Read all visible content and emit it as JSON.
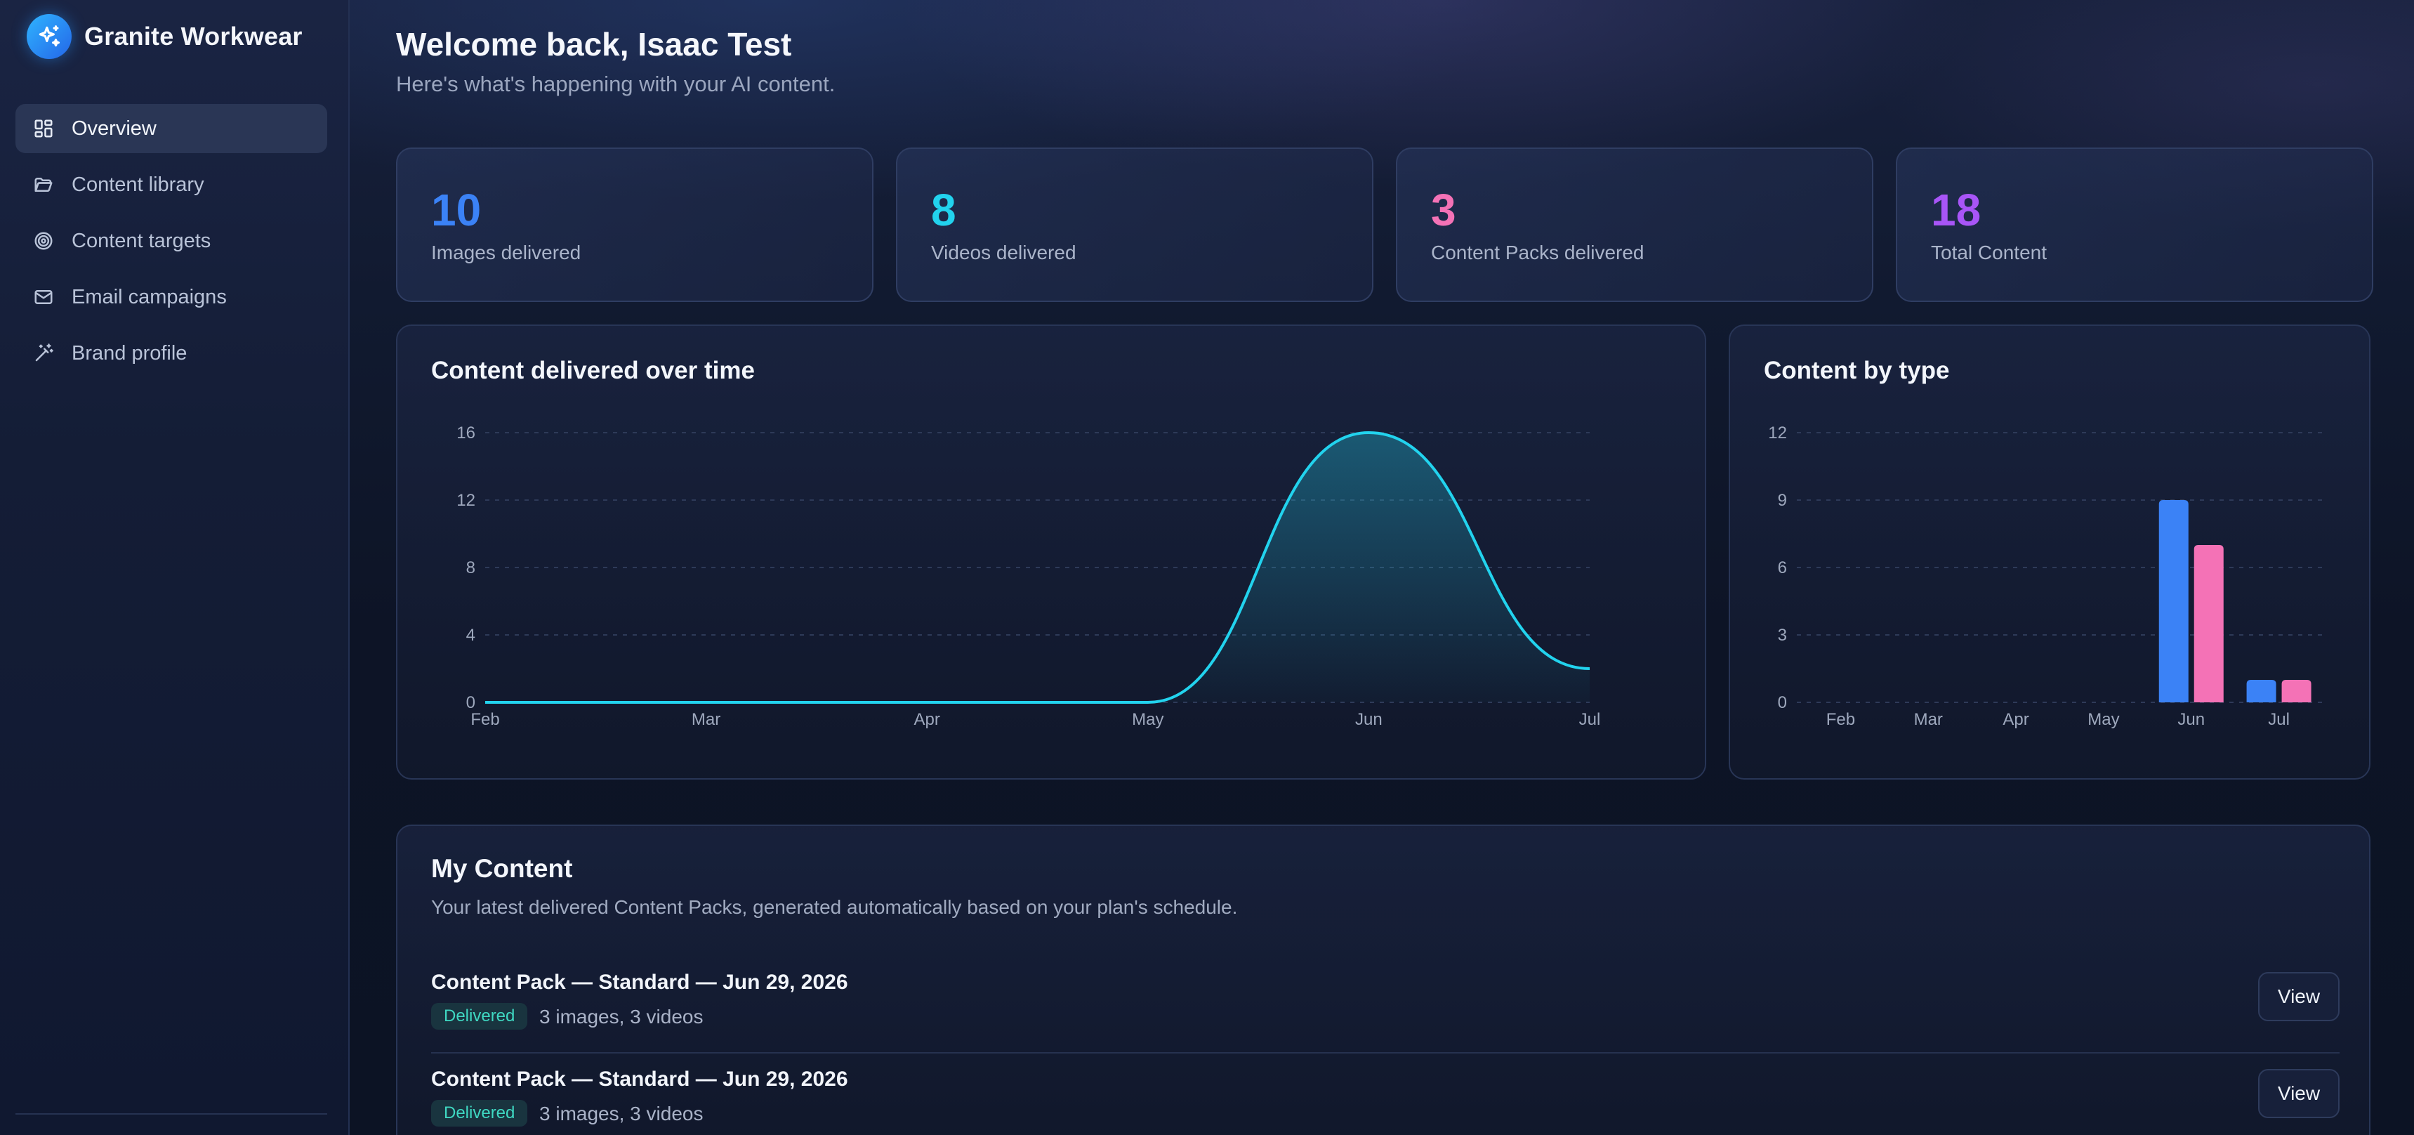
{
  "brand": {
    "name": "Granite Workwear",
    "logo_icon": "sparkles-icon"
  },
  "sidebar": {
    "items": [
      {
        "label": "Overview",
        "icon": "dashboard-grid-icon",
        "active": true
      },
      {
        "label": "Content library",
        "icon": "folder-open-icon",
        "active": false
      },
      {
        "label": "Content targets",
        "icon": "target-icon",
        "active": false
      },
      {
        "label": "Email campaigns",
        "icon": "mail-icon",
        "active": false
      },
      {
        "label": "Brand profile",
        "icon": "magic-wand-icon",
        "active": false
      }
    ]
  },
  "header": {
    "title": "Welcome back, Isaac Test",
    "subtitle": "Here's what's happening with your AI content."
  },
  "stats": [
    {
      "value": "10",
      "label": "Images delivered",
      "color": "#3b82f6"
    },
    {
      "value": "8",
      "label": "Videos delivered",
      "color": "#22d3ee"
    },
    {
      "value": "3",
      "label": "Content Packs delivered",
      "color": "#f472b6"
    },
    {
      "value": "18",
      "label": "Total Content",
      "color": "#a855f7"
    }
  ],
  "charts": {
    "over_time_title": "Content delivered over time",
    "by_type_title": "Content by type"
  },
  "chart_data": [
    {
      "type": "area",
      "title": "Content delivered over time",
      "categories": [
        "Feb",
        "Mar",
        "Apr",
        "May",
        "Jun",
        "Jul"
      ],
      "values": [
        0,
        0,
        0,
        0,
        16,
        2
      ],
      "yticks": [
        0,
        4,
        8,
        12,
        16
      ],
      "ylim": [
        0,
        16
      ],
      "grid": true,
      "color": "#22d3ee"
    },
    {
      "type": "bar",
      "title": "Content by type",
      "categories": [
        "Feb",
        "Mar",
        "Apr",
        "May",
        "Jun",
        "Jul"
      ],
      "series": [
        {
          "values": [
            0,
            0,
            0,
            0,
            9,
            1
          ],
          "color": "#3b82f6"
        },
        {
          "values": [
            0,
            0,
            0,
            0,
            7,
            1
          ],
          "color": "#f472b6"
        }
      ],
      "yticks": [
        0,
        3,
        6,
        9,
        12
      ],
      "ylim": [
        0,
        12
      ],
      "grid": true
    }
  ],
  "my_content": {
    "title": "My Content",
    "subtitle": "Your latest delivered Content Packs, generated automatically based on your plan's schedule.",
    "items": [
      {
        "title": "Content Pack — Standard — Jun 29, 2026",
        "status": "Delivered",
        "meta": "3 images, 3 videos",
        "action": "View"
      },
      {
        "title": "Content Pack — Standard — Jun 29, 2026",
        "status": "Delivered",
        "meta": "3 images, 3 videos",
        "action": "View"
      }
    ]
  }
}
